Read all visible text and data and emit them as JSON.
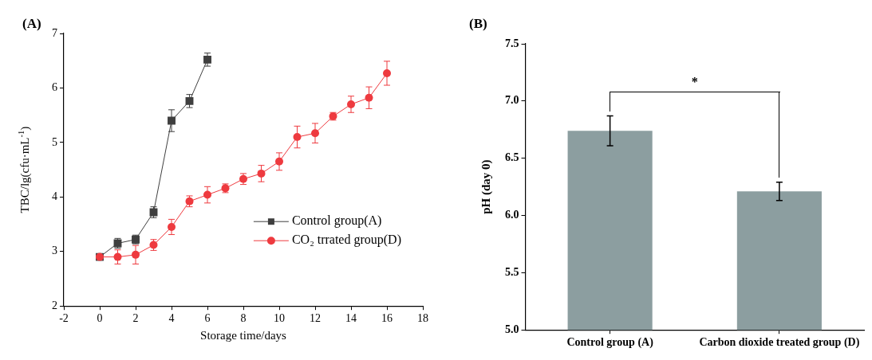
{
  "chart_data": [
    {
      "type": "line",
      "title": "(A)",
      "xlabel": "Storage time/days",
      "ylabel": "TBC/lg(cfu·mL$^{-1}$)",
      "xlim": [
        -2,
        18
      ],
      "xticks": [
        -2,
        0,
        2,
        4,
        6,
        8,
        10,
        12,
        14,
        16,
        18
      ],
      "ylim": [
        2,
        7
      ],
      "yticks": [
        2,
        3,
        4,
        5,
        6,
        7
      ],
      "grid": false,
      "legend": "bottom right",
      "line_style": "solid",
      "series": [
        {
          "name": "Control group(A)",
          "color": "#3f3f3f",
          "marker": "square",
          "x": [
            0,
            1,
            2,
            3,
            4,
            5,
            6
          ],
          "values": [
            2.9,
            3.15,
            3.22,
            3.72,
            5.4,
            5.76,
            6.52
          ],
          "errors": [
            null,
            0.09,
            0.08,
            0.1,
            0.2,
            0.12,
            0.12
          ]
        },
        {
          "name": "CO₂ trrated group(D)",
          "color": "#ee3a3f",
          "marker": "circle",
          "x": [
            0,
            1,
            2,
            3,
            4,
            5,
            6,
            7,
            8,
            9,
            10,
            11,
            12,
            13,
            14,
            15,
            16
          ],
          "values": [
            2.9,
            2.9,
            2.94,
            3.12,
            3.45,
            3.92,
            4.04,
            4.16,
            4.33,
            4.43,
            4.65,
            5.1,
            5.17,
            5.48,
            5.7,
            5.82,
            6.27
          ],
          "errors": [
            null,
            0.13,
            0.17,
            0.1,
            0.14,
            0.1,
            0.15,
            0.08,
            0.1,
            0.15,
            0.16,
            0.2,
            0.18,
            0.07,
            0.15,
            0.2,
            0.22
          ]
        }
      ]
    },
    {
      "type": "bar",
      "title": "(B)",
      "ylabel": "pH (day 0)",
      "categories": [
        "Control group (A)",
        "Carbon dioxide treated group (D)"
      ],
      "values": [
        6.74,
        6.21
      ],
      "errors": [
        0.13,
        0.08
      ],
      "color": "#8c9ea0",
      "ylim": [
        5,
        7.5
      ],
      "yticks": [
        {
          "value": 5,
          "label": "5.0"
        },
        {
          "value": 5.5,
          "label": "5.5"
        },
        {
          "value": 6,
          "label": "6.0"
        },
        {
          "value": 6.5,
          "label": "6.5"
        },
        {
          "value": 7,
          "label": "7.0"
        },
        {
          "value": 7.5,
          "label": "7.5"
        }
      ],
      "grid": false,
      "legend": false,
      "annotations": [
        "*"
      ]
    }
  ]
}
